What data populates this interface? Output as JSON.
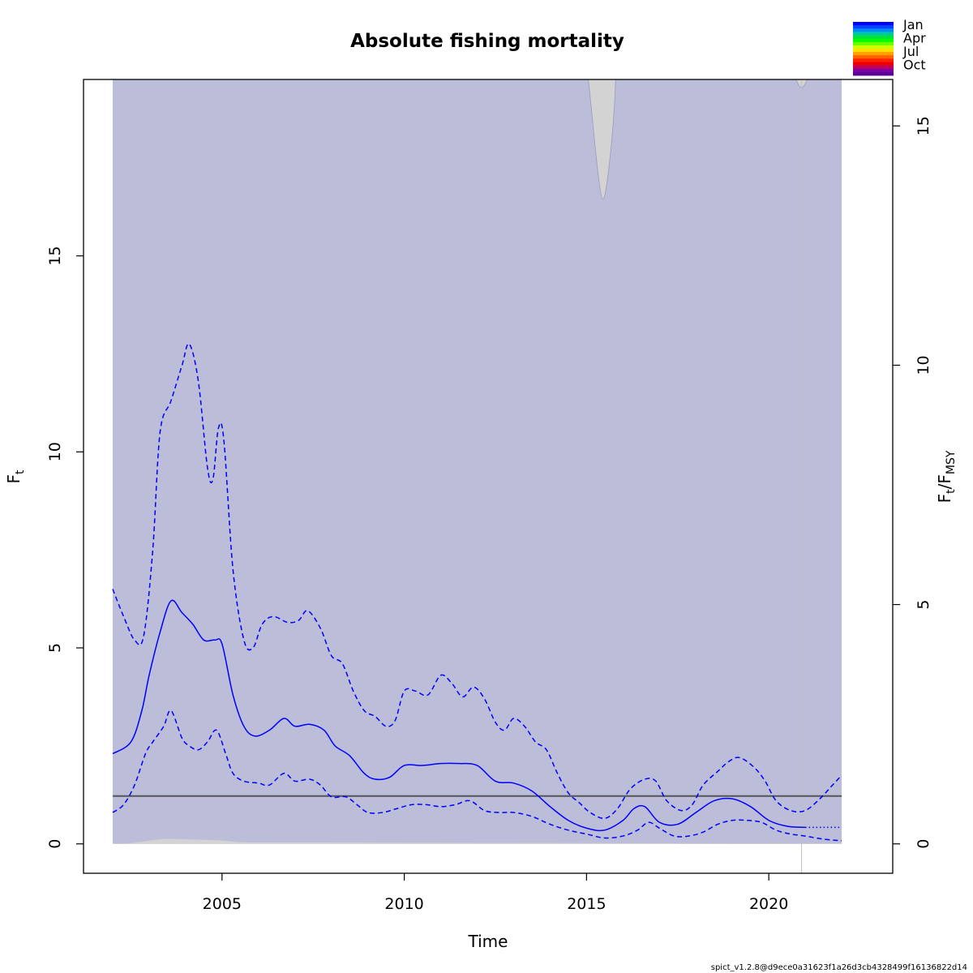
{
  "chart_data": {
    "type": "line",
    "title": "Absolute fishing mortality",
    "xlabel": "Time",
    "ylabel_base": "F",
    "ylabel_sub": "t",
    "ylabel2": {
      "f1": "F",
      "s1": "t",
      "slash": "/",
      "f2": "F",
      "s2": "MSY"
    },
    "xlim": [
      2001.2,
      2023.4
    ],
    "ylim": [
      -0.75,
      19.5
    ],
    "x_ticks": [
      "2005",
      "2010",
      "2015",
      "2020"
    ],
    "x_tick_values": [
      2005,
      2010,
      2015,
      2020
    ],
    "y_ticks": [
      "0",
      "5",
      "10",
      "15"
    ],
    "y_tick_values": [
      0,
      5,
      10,
      15
    ],
    "y2_ticks": [
      "0",
      "5",
      "10",
      "15"
    ],
    "y2_tick_values": [
      0,
      5,
      10,
      15
    ],
    "y2_per_y": 0.819,
    "fmsy": 1.22,
    "series": [
      {
        "role": "estimate",
        "style": "solid",
        "color": "#0000ff",
        "x": [
          2002.0,
          2002.5,
          2002.8,
          2003.0,
          2003.3,
          2003.6,
          2003.9,
          2004.2,
          2004.5,
          2004.8,
          2005.0,
          2005.3,
          2005.6,
          2005.9,
          2006.3,
          2006.7,
          2007.0,
          2007.4,
          2007.8,
          2008.1,
          2008.5,
          2008.9,
          2009.2,
          2009.6,
          2010.0,
          2010.5,
          2011.0,
          2011.5,
          2012.0,
          2012.5,
          2013.0,
          2013.5,
          2014.0,
          2014.5,
          2015.0,
          2015.5,
          2016.0,
          2016.3,
          2016.6,
          2017.0,
          2017.5,
          2018.0,
          2018.5,
          2019.0,
          2019.5,
          2020.0,
          2020.5,
          2021.0
        ],
        "y": [
          2.3,
          2.6,
          3.4,
          4.3,
          5.4,
          6.2,
          5.9,
          5.6,
          5.2,
          5.2,
          5.1,
          3.8,
          3.0,
          2.75,
          2.9,
          3.2,
          3.0,
          3.05,
          2.9,
          2.5,
          2.25,
          1.8,
          1.65,
          1.7,
          2.0,
          2.0,
          2.05,
          2.05,
          2.0,
          1.6,
          1.55,
          1.35,
          0.95,
          0.6,
          0.4,
          0.35,
          0.6,
          0.9,
          0.95,
          0.55,
          0.5,
          0.8,
          1.1,
          1.15,
          0.95,
          0.6,
          0.45,
          0.42
        ]
      },
      {
        "role": "upper-ci",
        "style": "dashed",
        "color": "#0000ff",
        "x": [
          2002.0,
          2002.3,
          2002.6,
          2002.85,
          2003.1,
          2003.3,
          2003.6,
          2003.9,
          2004.1,
          2004.35,
          2004.6,
          2004.75,
          2004.9,
          2005.05,
          2005.3,
          2005.6,
          2005.85,
          2006.1,
          2006.4,
          2006.8,
          2007.1,
          2007.35,
          2007.7,
          2008.0,
          2008.3,
          2008.6,
          2008.9,
          2009.2,
          2009.5,
          2009.75,
          2010.0,
          2010.3,
          2010.65,
          2011.0,
          2011.3,
          2011.6,
          2011.9,
          2012.2,
          2012.5,
          2012.75,
          2013.0,
          2013.3,
          2013.6,
          2013.9,
          2014.2,
          2014.5,
          2014.8,
          2015.1,
          2015.5,
          2015.85,
          2016.2,
          2016.6,
          2016.9,
          2017.2,
          2017.6,
          2017.9,
          2018.2,
          2018.6,
          2018.9,
          2019.2,
          2019.6,
          2019.9,
          2020.2,
          2020.6,
          2021.0,
          2021.4,
          2021.7,
          2022.0
        ],
        "y": [
          6.5,
          5.8,
          5.2,
          5.3,
          7.5,
          10.5,
          11.3,
          12.2,
          12.75,
          11.8,
          9.6,
          9.3,
          10.6,
          10.3,
          7.0,
          5.2,
          5.0,
          5.6,
          5.8,
          5.65,
          5.7,
          5.95,
          5.5,
          4.8,
          4.6,
          3.9,
          3.4,
          3.25,
          3.0,
          3.15,
          3.9,
          3.9,
          3.8,
          4.3,
          4.1,
          3.75,
          4.0,
          3.7,
          3.1,
          2.9,
          3.2,
          3.0,
          2.6,
          2.4,
          1.8,
          1.3,
          1.05,
          0.8,
          0.65,
          0.9,
          1.4,
          1.65,
          1.6,
          1.1,
          0.85,
          1.0,
          1.5,
          1.85,
          2.1,
          2.2,
          1.95,
          1.6,
          1.1,
          0.85,
          0.85,
          1.15,
          1.45,
          1.75
        ]
      },
      {
        "role": "lower-ci",
        "style": "dashed",
        "color": "#0000ff",
        "x": [
          2002.0,
          2002.3,
          2002.6,
          2002.9,
          2003.1,
          2003.4,
          2003.6,
          2003.9,
          2004.1,
          2004.35,
          2004.6,
          2004.85,
          2005.1,
          2005.3,
          2005.6,
          2006.0,
          2006.3,
          2006.7,
          2007.0,
          2007.4,
          2007.7,
          2008.0,
          2008.4,
          2008.7,
          2009.0,
          2009.4,
          2009.8,
          2010.2,
          2010.6,
          2011.0,
          2011.4,
          2011.8,
          2012.2,
          2012.6,
          2013.0,
          2013.5,
          2014.0,
          2014.5,
          2015.0,
          2015.5,
          2016.0,
          2016.4,
          2016.7,
          2017.0,
          2017.4,
          2017.8,
          2018.2,
          2018.6,
          2019.0,
          2019.4,
          2019.8,
          2020.2,
          2020.6,
          2021.0,
          2021.5,
          2022.0
        ],
        "y": [
          0.8,
          1.0,
          1.5,
          2.3,
          2.6,
          3.0,
          3.4,
          2.7,
          2.5,
          2.4,
          2.6,
          2.9,
          2.3,
          1.8,
          1.6,
          1.55,
          1.5,
          1.8,
          1.6,
          1.65,
          1.5,
          1.2,
          1.2,
          1.0,
          0.8,
          0.8,
          0.9,
          1.0,
          1.0,
          0.95,
          1.0,
          1.1,
          0.85,
          0.8,
          0.8,
          0.7,
          0.5,
          0.35,
          0.25,
          0.15,
          0.2,
          0.35,
          0.55,
          0.4,
          0.2,
          0.2,
          0.3,
          0.5,
          0.6,
          0.6,
          0.55,
          0.35,
          0.25,
          0.2,
          0.12,
          0.08
        ]
      },
      {
        "role": "forecast",
        "style": "dotted",
        "color": "#0000ff",
        "x": [
          2021.0,
          2022.0
        ],
        "y": [
          0.42,
          0.42
        ]
      }
    ],
    "ci_band": {
      "x_start": 2002.0,
      "x_end": 2022.0,
      "color": "#bcbdd9"
    },
    "gray_region_color": "#d3d3d3",
    "vertical_marker_x": 2020.9,
    "legend": {
      "position": "top-right",
      "labels": [
        "Jan",
        "Apr",
        "Jul",
        "Oct"
      ],
      "colors": [
        "#0000ff",
        "#0044ff",
        "#0088ff",
        "#00c8a0",
        "#00e040",
        "#00ff00",
        "#66ff00",
        "#ccff00",
        "#ffe000",
        "#ffa000",
        "#ff6000",
        "#ff2000",
        "#ee0000",
        "#c00060",
        "#8000a0",
        "#5a0099"
      ]
    },
    "grid": false
  },
  "footer_text": "spict_v1.2.8@d9ece0a31623f1a26d3cb4328499f16136822d14"
}
